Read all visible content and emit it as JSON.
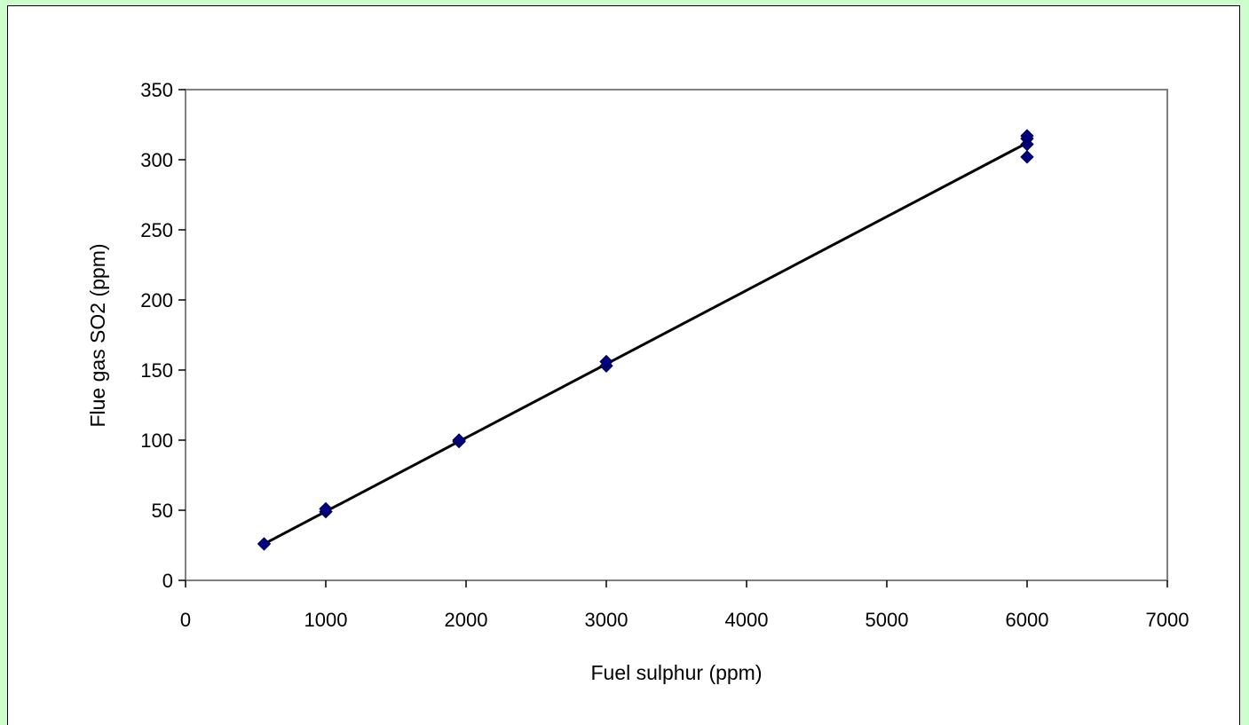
{
  "chart_data": {
    "type": "scatter",
    "xlabel": "Fuel sulphur (ppm)",
    "ylabel": "Flue gas SO2 (ppm)",
    "xlim": [
      0,
      7000
    ],
    "ylim": [
      0,
      350
    ],
    "x_ticks": [
      0,
      1000,
      2000,
      3000,
      4000,
      5000,
      6000,
      7000
    ],
    "y_ticks": [
      0,
      50,
      100,
      150,
      200,
      250,
      300,
      350
    ],
    "grid": false,
    "legend": "none",
    "series": [
      {
        "marker": "diamond",
        "color": "#000080",
        "points": [
          [
            560,
            26
          ],
          [
            1000,
            49
          ],
          [
            1000,
            51
          ],
          [
            1950,
            99
          ],
          [
            1950,
            100
          ],
          [
            3000,
            153
          ],
          [
            3000,
            156
          ],
          [
            6000,
            302
          ],
          [
            6000,
            311
          ],
          [
            6000,
            315
          ],
          [
            6000,
            317
          ]
        ]
      }
    ],
    "trendline": {
      "x": [
        560,
        6000
      ],
      "y": [
        26,
        312
      ],
      "color": "#000000"
    }
  }
}
